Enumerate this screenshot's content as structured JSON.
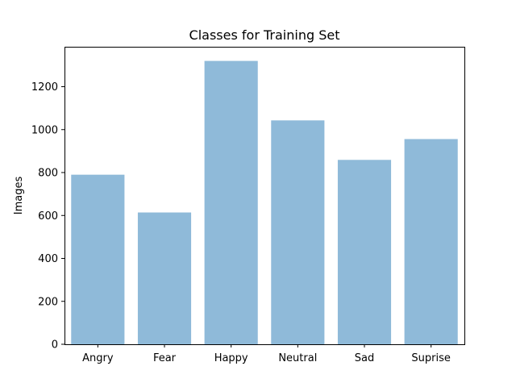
{
  "chart_data": {
    "type": "bar",
    "title": "Classes for Training Set",
    "xlabel": "",
    "ylabel": "Images",
    "categories": [
      "Angry",
      "Fear",
      "Happy",
      "Neutral",
      "Sad",
      "Suprise"
    ],
    "values": [
      790,
      614,
      1320,
      1043,
      859,
      956
    ],
    "ylim": [
      0,
      1386
    ],
    "yticks": [
      0,
      200,
      400,
      600,
      800,
      1000,
      1200
    ],
    "bar_color": "#8fbad9",
    "grid": false,
    "legend": "none"
  }
}
